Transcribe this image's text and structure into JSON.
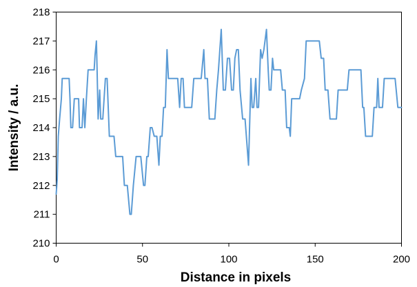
{
  "chart_data": {
    "type": "line",
    "title": "",
    "xlabel": "Distance in pixels",
    "ylabel": "Intensity / a.u.",
    "xlim": [
      0,
      200
    ],
    "ylim": [
      210,
      218
    ],
    "x_ticks": [
      0,
      50,
      100,
      150,
      200
    ],
    "y_ticks": [
      210,
      211,
      212,
      213,
      214,
      215,
      216,
      217,
      218
    ],
    "grid": false,
    "legend": "none",
    "series": [
      {
        "color": "#5B9BD5",
        "points": [
          [
            0,
            211.7
          ],
          [
            0.6,
            212.2
          ],
          [
            1.2,
            213.7
          ],
          [
            2,
            214.3
          ],
          [
            3,
            215.0
          ],
          [
            3.5,
            215.7
          ],
          [
            5.5,
            215.7
          ],
          [
            7.5,
            215.7
          ],
          [
            8,
            215.0
          ],
          [
            8.5,
            214.0
          ],
          [
            9.5,
            214.0
          ],
          [
            10.5,
            215.0
          ],
          [
            13,
            215.0
          ],
          [
            13.5,
            214.0
          ],
          [
            15,
            214.0
          ],
          [
            15.8,
            215.0
          ],
          [
            16.6,
            214.0
          ],
          [
            17.5,
            215.0
          ],
          [
            18.5,
            216.0
          ],
          [
            22,
            216.0
          ],
          [
            22.5,
            216.5
          ],
          [
            23.3,
            217.0
          ],
          [
            23.7,
            216.0
          ],
          [
            24.3,
            214.3
          ],
          [
            25.2,
            215.3
          ],
          [
            25.8,
            214.3
          ],
          [
            27,
            214.3
          ],
          [
            28.5,
            215.7
          ],
          [
            29.5,
            215.7
          ],
          [
            30.8,
            213.7
          ],
          [
            33.5,
            213.7
          ],
          [
            34.5,
            213.0
          ],
          [
            38.5,
            213.0
          ],
          [
            39.5,
            212.0
          ],
          [
            41.2,
            212.0
          ],
          [
            42.7,
            211.0
          ],
          [
            43.5,
            211.0
          ],
          [
            44.7,
            212.0
          ],
          [
            46.3,
            213.0
          ],
          [
            49,
            213.0
          ],
          [
            50.6,
            212.0
          ],
          [
            51.4,
            212.0
          ],
          [
            52.5,
            213.0
          ],
          [
            53.3,
            213.0
          ],
          [
            54.5,
            214.0
          ],
          [
            55.5,
            214.0
          ],
          [
            56.8,
            213.7
          ],
          [
            58.3,
            213.7
          ],
          [
            59.5,
            212.7
          ],
          [
            60.3,
            213.7
          ],
          [
            61.3,
            213.7
          ],
          [
            62.2,
            214.7
          ],
          [
            63.2,
            214.7
          ],
          [
            64.2,
            216.7
          ],
          [
            65,
            215.7
          ],
          [
            70.4,
            215.7
          ],
          [
            71.5,
            214.7
          ],
          [
            72.4,
            215.7
          ],
          [
            73.5,
            215.7
          ],
          [
            74.3,
            214.7
          ],
          [
            78.5,
            214.7
          ],
          [
            79.7,
            215.7
          ],
          [
            84,
            215.7
          ],
          [
            85.5,
            216.7
          ],
          [
            86.2,
            215.7
          ],
          [
            87.6,
            215.7
          ],
          [
            88.7,
            214.3
          ],
          [
            91.9,
            214.3
          ],
          [
            93,
            215.3
          ],
          [
            94,
            216.0
          ],
          [
            95.6,
            217.4
          ],
          [
            96.8,
            215.3
          ],
          [
            98,
            215.3
          ],
          [
            99.2,
            216.4
          ],
          [
            100.4,
            216.4
          ],
          [
            101.6,
            215.3
          ],
          [
            102.6,
            215.3
          ],
          [
            103.5,
            216.4
          ],
          [
            104.5,
            216.7
          ],
          [
            105.5,
            216.7
          ],
          [
            106.5,
            215.3
          ],
          [
            108,
            214.3
          ],
          [
            109.4,
            214.3
          ],
          [
            111.4,
            212.7
          ],
          [
            112.8,
            215.7
          ],
          [
            113.5,
            214.7
          ],
          [
            114.4,
            214.7
          ],
          [
            115.6,
            215.7
          ],
          [
            116.3,
            214.7
          ],
          [
            117.2,
            214.7
          ],
          [
            118.4,
            216.7
          ],
          [
            119.3,
            216.4
          ],
          [
            120.3,
            216.7
          ],
          [
            121.8,
            217.4
          ],
          [
            122.8,
            216.0
          ],
          [
            123.4,
            215.3
          ],
          [
            124.4,
            215.3
          ],
          [
            125.3,
            216.4
          ],
          [
            126,
            216.0
          ],
          [
            130,
            216.0
          ],
          [
            131,
            215.3
          ],
          [
            132.6,
            215.3
          ],
          [
            133.5,
            214.0
          ],
          [
            135,
            214.0
          ],
          [
            135.6,
            213.7
          ],
          [
            136.4,
            215.0
          ],
          [
            141,
            215.0
          ],
          [
            142,
            215.3
          ],
          [
            143.8,
            215.7
          ],
          [
            144.8,
            217.0
          ],
          [
            152.4,
            217.0
          ],
          [
            153.5,
            216.4
          ],
          [
            154.9,
            216.4
          ],
          [
            155.8,
            215.3
          ],
          [
            157.4,
            215.3
          ],
          [
            158.6,
            214.3
          ],
          [
            162.3,
            214.3
          ],
          [
            163.3,
            215.3
          ],
          [
            168.6,
            215.3
          ],
          [
            169.6,
            216.0
          ],
          [
            176.5,
            216.0
          ],
          [
            177.5,
            214.7
          ],
          [
            178.2,
            214.7
          ],
          [
            179.2,
            213.7
          ],
          [
            183.1,
            213.7
          ],
          [
            184.1,
            214.7
          ],
          [
            185.6,
            214.7
          ],
          [
            186.3,
            215.7
          ],
          [
            187,
            214.7
          ],
          [
            189,
            214.7
          ],
          [
            190,
            215.7
          ],
          [
            196.3,
            215.7
          ],
          [
            197.9,
            214.7
          ],
          [
            200,
            214.7
          ]
        ]
      }
    ]
  }
}
